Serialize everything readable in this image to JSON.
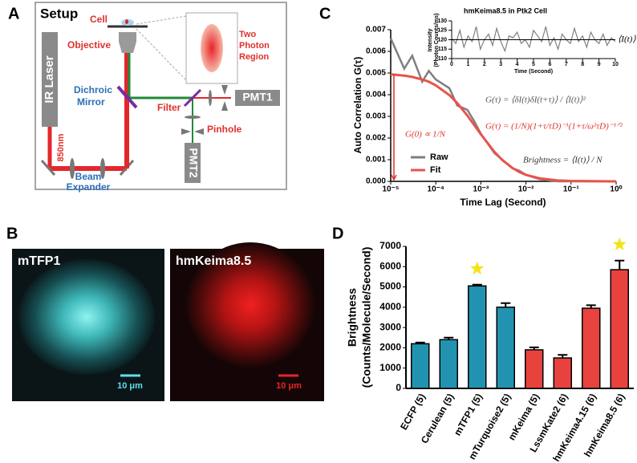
{
  "panel_letters": [
    "A",
    "B",
    "C",
    "D"
  ],
  "setup": {
    "title": "Setup",
    "cell": "Cell",
    "objective": "Objective",
    "two_photon_region": [
      "Two",
      "Photon",
      "Region"
    ],
    "laser": "IR Laser",
    "wavelength": "850nm",
    "dichroic_mirror": [
      "Dichroic",
      "Mirror"
    ],
    "filter": "Filter",
    "pinhole": "Pinhole",
    "pmt1": "PMT1",
    "pmt2": "PMT2",
    "beam_expander": [
      "Beam",
      "Expander"
    ]
  },
  "images": [
    {
      "label": "mTFP1",
      "scale_bar": "10 μm"
    },
    {
      "label": "hmKeima8.5",
      "scale_bar": "10 μm"
    }
  ],
  "chart_data": [
    {
      "type": "line",
      "log_x": true,
      "x_label": "Time Lag (Second)",
      "y_label": "Auto  Correlation G(τ)",
      "x": [
        1e-05,
        2e-05,
        3e-05,
        5e-05,
        7e-05,
        0.0001,
        0.0002,
        0.0003,
        0.0005,
        0.0007,
        0.001,
        0.002,
        0.003,
        0.005,
        0.007,
        0.01,
        0.02,
        0.05,
        0.1,
        1
      ],
      "xlim": [
        1e-05,
        1
      ],
      "xticks": [
        {
          "value": 1e-05,
          "label": "10⁻⁵"
        },
        {
          "value": 0.0001,
          "label": "10⁻⁴"
        },
        {
          "value": 0.001,
          "label": "10⁻³"
        },
        {
          "value": 0.01,
          "label": "10⁻²"
        },
        {
          "value": 0.1,
          "label": "10⁻¹"
        },
        {
          "value": 1,
          "label": "10⁰"
        }
      ],
      "ylim": [
        0,
        0.007
      ],
      "yticks": [
        {
          "value": 0,
          "label": "0.000"
        },
        {
          "value": 0.001,
          "label": "0.001"
        },
        {
          "value": 0.002,
          "label": "0.002"
        },
        {
          "value": 0.003,
          "label": "0.003"
        },
        {
          "value": 0.004,
          "label": "0.004"
        },
        {
          "value": 0.005,
          "label": "0.005"
        },
        {
          "value": 0.006,
          "label": "0.006"
        },
        {
          "value": 0.007,
          "label": "0.007"
        }
      ],
      "series": [
        {
          "name": "Raw",
          "color": "#7f7f7f",
          "values": [
            0.0066,
            0.0052,
            0.0058,
            0.0046,
            0.0051,
            0.0047,
            0.0043,
            0.0035,
            0.0033,
            0.0028,
            0.0022,
            0.0013,
            0.001,
            0.0006,
            0.0005,
            0.0003,
            0.0001,
            0,
            0,
            0
          ]
        },
        {
          "name": "Fit",
          "color": "#e8534c",
          "values": [
            0.00494,
            0.00488,
            0.00482,
            0.0047,
            0.0046,
            0.00443,
            0.00398,
            0.00361,
            0.00304,
            0.00262,
            0.00217,
            0.00136,
            0.00098,
            0.00062,
            0.00044,
            0.0003,
            0.00014,
            4e-05,
            2e-05,
            0
          ]
        }
      ],
      "annotations": [
        "G(τ) = ⟨δI(t)δI(t+τ)⟩ / ⟨I(t)⟩²",
        "G(τ) = (1/N)(1+τ/τD)⁻¹(1+τ/ω²τD)⁻¹ᐟ²",
        "G(0) ∝ 1/N",
        "Brightness = ⟨I(t)⟩ / N"
      ]
    },
    {
      "type": "line",
      "title": "hmKeima8.5 in Ptk2 Cell",
      "x_label": "Time (Second)",
      "y_label": [
        "Intensity",
        "(Photon Counts/ms)"
      ],
      "mean_label": "⟨I(t)⟩",
      "mean": 120,
      "x": [
        0,
        0.25,
        0.5,
        0.75,
        1,
        1.25,
        1.5,
        1.75,
        2,
        2.25,
        2.5,
        2.75,
        3,
        3.25,
        3.5,
        3.75,
        4,
        4.25,
        4.5,
        4.75,
        5,
        5.25,
        5.5,
        5.75,
        6,
        6.25,
        6.5,
        6.75,
        7,
        7.25,
        7.5,
        7.75,
        8,
        8.25,
        8.5,
        8.75,
        9,
        9.25,
        9.5,
        9.75,
        10
      ],
      "xlim": [
        0,
        10
      ],
      "xticks": [
        0,
        1,
        2,
        3,
        4,
        5,
        6,
        7,
        8,
        9,
        10
      ],
      "ylim": [
        110,
        130
      ],
      "yticks": [
        110,
        115,
        120,
        125,
        130
      ],
      "series": [
        {
          "color": "#7f7f7f",
          "values": [
            121,
            118,
            125,
            116,
            122,
            119,
            127,
            115,
            120,
            123,
            117,
            126,
            119,
            114,
            122,
            121,
            124,
            118,
            120,
            116,
            125,
            122,
            119,
            127,
            117,
            121,
            115,
            123,
            120,
            118,
            126,
            119,
            122,
            116,
            124,
            120,
            118,
            123,
            117,
            121,
            119
          ]
        }
      ]
    },
    {
      "type": "bar",
      "y_label": [
        "Brightness",
        "(Counts/Molecule/Second)"
      ],
      "categories": [
        "ECFP (5)",
        "Cerulean (5)",
        "mTFP1 (5)",
        "mTurquoise2 (5)",
        "mKeima (5)",
        "LssmKate2 (6)",
        "hmKeima4.15 (6)",
        "hmKeima8.5 (6)"
      ],
      "values": [
        2200,
        2400,
        5050,
        4000,
        1900,
        1500,
        3950,
        5850
      ],
      "errors": [
        60,
        100,
        60,
        200,
        120,
        150,
        150,
        450
      ],
      "colors": [
        "#2193b0",
        "#2193b0",
        "#2193b0",
        "#2193b0",
        "#e8423f",
        "#e8423f",
        "#e8423f",
        "#e8423f"
      ],
      "highlighted": [
        2,
        7
      ],
      "highlight_color": "#f2e41a",
      "ylim": [
        0,
        7000
      ],
      "yticks": [
        0,
        1000,
        2000,
        3000,
        4000,
        5000,
        6000,
        7000
      ]
    }
  ]
}
